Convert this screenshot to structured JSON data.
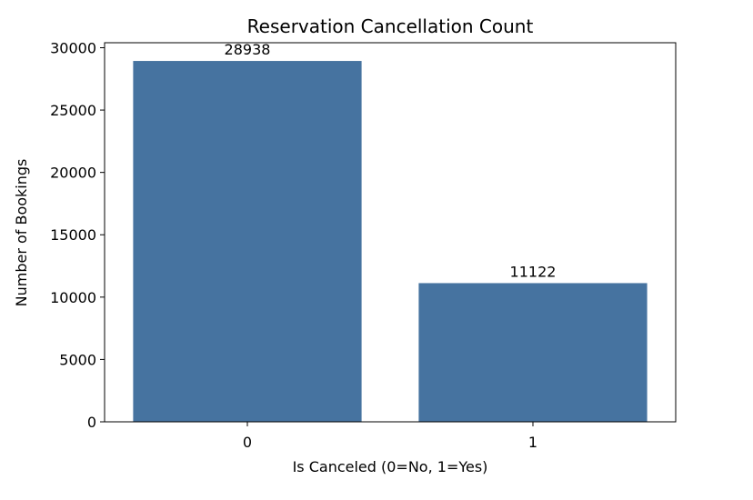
{
  "chart_data": {
    "type": "bar",
    "title": "Reservation Cancellation Count",
    "xlabel": "Is Canceled (0=No, 1=Yes)",
    "ylabel": "Number of Bookings",
    "categories": [
      "0",
      "1"
    ],
    "values": [
      28938,
      11122
    ],
    "data_labels": [
      "28938",
      "11122"
    ],
    "ylim": [
      0,
      30400
    ],
    "yticks": [
      0,
      5000,
      10000,
      15000,
      20000,
      25000,
      30000
    ],
    "bar_color": "#4673a0",
    "grid": false,
    "legend": "none"
  }
}
